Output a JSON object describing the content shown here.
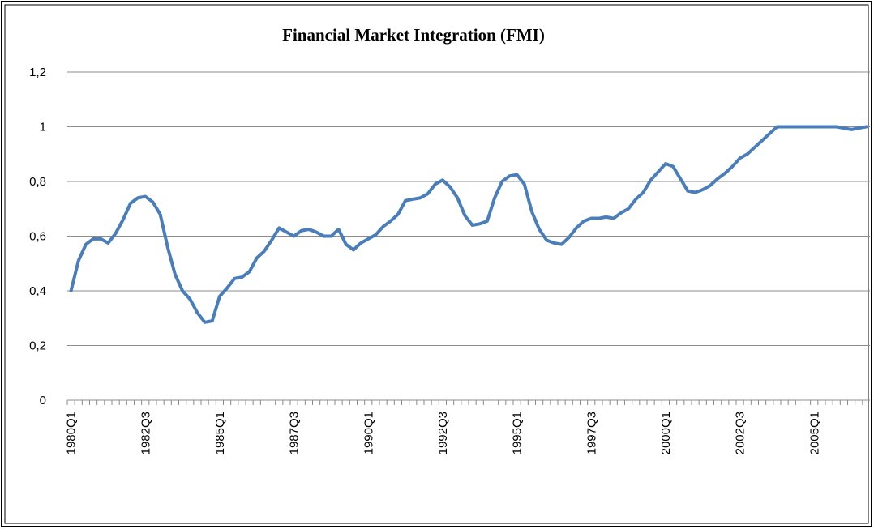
{
  "chart_data": {
    "type": "line",
    "title": "Financial Market Integration (FMI)",
    "categories": [
      "1980Q1",
      null,
      null,
      null,
      null,
      null,
      null,
      null,
      null,
      null,
      "1982Q3",
      null,
      null,
      null,
      null,
      null,
      null,
      null,
      null,
      null,
      "1985Q1",
      null,
      null,
      null,
      null,
      null,
      null,
      null,
      null,
      null,
      "1987Q3",
      null,
      null,
      null,
      null,
      null,
      null,
      null,
      null,
      null,
      "1990Q1",
      null,
      null,
      null,
      null,
      null,
      null,
      null,
      null,
      null,
      "1992Q3",
      null,
      null,
      null,
      null,
      null,
      null,
      null,
      null,
      null,
      "1995Q1",
      null,
      null,
      null,
      null,
      null,
      null,
      null,
      null,
      null,
      "1997Q3",
      null,
      null,
      null,
      null,
      null,
      null,
      null,
      null,
      null,
      "2000Q1",
      null,
      null,
      null,
      null,
      null,
      null,
      null,
      null,
      null,
      "2002Q3",
      null,
      null,
      null,
      null,
      null,
      null,
      null,
      null,
      null,
      "2005Q1",
      null,
      null,
      null,
      null,
      null,
      null,
      null
    ],
    "values": [
      0.4,
      0.51,
      0.57,
      0.59,
      0.59,
      0.575,
      0.61,
      0.66,
      0.72,
      0.74,
      0.745,
      0.725,
      0.68,
      0.56,
      0.46,
      0.4,
      0.37,
      0.32,
      0.285,
      0.29,
      0.38,
      0.41,
      0.445,
      0.45,
      0.47,
      0.52,
      0.545,
      0.585,
      0.63,
      0.615,
      0.6,
      0.62,
      0.625,
      0.615,
      0.6,
      0.6,
      0.625,
      0.57,
      0.55,
      0.575,
      0.59,
      0.605,
      0.635,
      0.655,
      0.68,
      0.73,
      0.735,
      0.74,
      0.755,
      0.79,
      0.805,
      0.78,
      0.74,
      0.675,
      0.64,
      0.645,
      0.655,
      0.74,
      0.8,
      0.82,
      0.825,
      0.79,
      0.69,
      0.625,
      0.585,
      0.575,
      0.57,
      0.595,
      0.63,
      0.655,
      0.665,
      0.665,
      0.67,
      0.665,
      0.685,
      0.7,
      0.735,
      0.76,
      0.805,
      0.835,
      0.865,
      0.855,
      0.81,
      0.765,
      0.76,
      0.77,
      0.785,
      0.81,
      0.83,
      0.855,
      0.885,
      0.9,
      0.925,
      0.95,
      0.975,
      1,
      1,
      1,
      1,
      1,
      1,
      1,
      1,
      1,
      0.995,
      0.99,
      0.995,
      1
    ],
    "color": "#4a7ebb",
    "ylim": [
      0,
      1.2
    ],
    "yticks": [
      0,
      {
        "value": 0.2,
        "label": "0,2"
      },
      {
        "value": 0.4,
        "label": "0,4"
      },
      {
        "value": 0.6,
        "label": "0,6"
      },
      {
        "value": 0.8,
        "label": "0,8"
      },
      1,
      {
        "value": 1.2,
        "label": "1,2"
      }
    ],
    "grid": true
  }
}
